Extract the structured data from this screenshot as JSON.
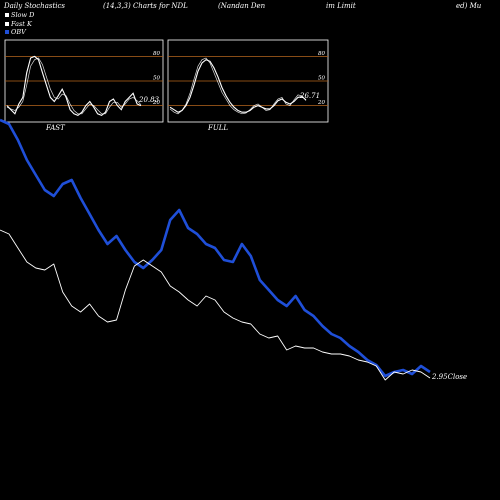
{
  "header": {
    "left": "Daily Stochastics",
    "params": "(14,3,3) Charts for NDL",
    "name": "(Nandan Den",
    "name2": "im Limit",
    "name3": "ed) Mu"
  },
  "legend": [
    {
      "label": "Slow  D",
      "color": "#ffffff"
    },
    {
      "label": "Fast K",
      "color": "#ffffff"
    },
    {
      "label": "OBV",
      "color": "#1f4fd8"
    }
  ],
  "colors": {
    "obv": "#1f4fd8",
    "price": "#ffffff",
    "panel_border": "#ffffff",
    "gridline": "#b5651d"
  },
  "chart_data": [
    {
      "type": "line",
      "panel": "FAST",
      "label": "FAST",
      "ylim": [
        0,
        100
      ],
      "gridlines": [
        20,
        50,
        80
      ],
      "last_value_label": "20.83",
      "series": [
        {
          "name": "Fast K",
          "values": [
            20,
            15,
            10,
            22,
            30,
            60,
            78,
            80,
            76,
            60,
            45,
            30,
            25,
            32,
            40,
            30,
            15,
            10,
            8,
            12,
            20,
            25,
            18,
            10,
            8,
            12,
            25,
            28,
            20,
            15,
            25,
            30,
            35,
            22,
            20
          ]
        },
        {
          "name": "Slow D",
          "values": [
            18,
            16,
            14,
            18,
            25,
            45,
            68,
            76,
            78,
            70,
            55,
            40,
            30,
            28,
            34,
            32,
            22,
            14,
            10,
            10,
            16,
            22,
            20,
            15,
            10,
            10,
            18,
            24,
            24,
            18,
            22,
            28,
            30,
            26,
            21
          ]
        }
      ]
    },
    {
      "type": "line",
      "panel": "FULL",
      "label": "FULL",
      "ylim": [
        0,
        100
      ],
      "gridlines": [
        20,
        50,
        80
      ],
      "last_value_label": "26.71",
      "series": [
        {
          "name": "Slow D",
          "values": [
            18,
            15,
            12,
            14,
            20,
            30,
            45,
            62,
            72,
            76,
            74,
            66,
            55,
            42,
            32,
            24,
            18,
            14,
            12,
            12,
            14,
            18,
            20,
            18,
            16,
            16,
            20,
            26,
            28,
            24,
            22,
            25,
            30,
            31,
            27
          ]
        },
        {
          "name": "Fast K",
          "values": [
            16,
            12,
            10,
            14,
            22,
            35,
            52,
            68,
            76,
            78,
            72,
            60,
            48,
            36,
            28,
            20,
            15,
            12,
            10,
            11,
            15,
            20,
            22,
            18,
            14,
            15,
            22,
            28,
            30,
            22,
            20,
            27,
            33,
            32,
            26
          ]
        }
      ]
    },
    {
      "type": "line",
      "panel": "main",
      "last_value_label": "2.95",
      "last_value_suffix": "Close",
      "series": [
        {
          "name": "OBV",
          "values": [
            120,
            124,
            140,
            160,
            175,
            190,
            196,
            184,
            180,
            198,
            214,
            230,
            244,
            236,
            250,
            262,
            268,
            260,
            250,
            220,
            210,
            228,
            234,
            244,
            248,
            260,
            262,
            244,
            256,
            280,
            290,
            300,
            306,
            296,
            310,
            316,
            326,
            334,
            338,
            346,
            352,
            360,
            365,
            376,
            372,
            370,
            374,
            366,
            372
          ]
        },
        {
          "name": "Price",
          "values": [
            230,
            234,
            248,
            262,
            268,
            270,
            264,
            292,
            306,
            312,
            304,
            316,
            322,
            320,
            290,
            266,
            260,
            266,
            272,
            286,
            292,
            300,
            306,
            296,
            300,
            312,
            318,
            322,
            324,
            334,
            338,
            336,
            350,
            346,
            348,
            348,
            352,
            354,
            354,
            356,
            360,
            362,
            366,
            380,
            372,
            374,
            370,
            372,
            378
          ]
        }
      ]
    }
  ]
}
